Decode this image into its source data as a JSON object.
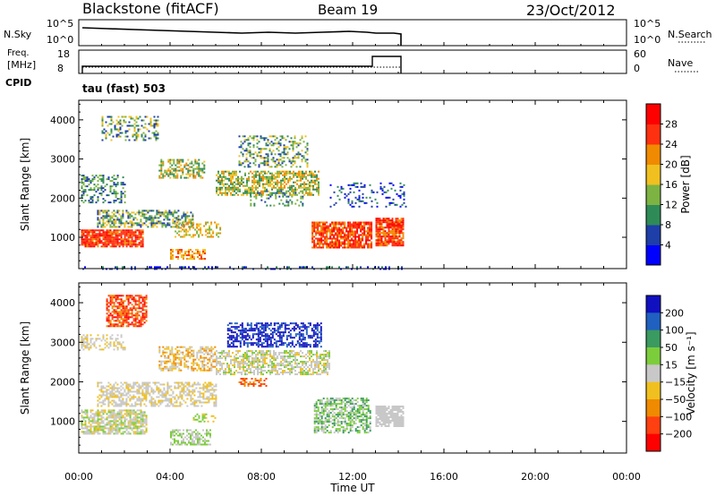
{
  "header": {
    "station": "Blackstone (fitACF)",
    "beam": "Beam 19",
    "date": "23/Oct/2012"
  },
  "top_panels": {
    "nsky_label": "N.Sky",
    "nsky_ticks": [
      "10^5",
      "10^0"
    ],
    "nsearch_label": "N.Search",
    "nsearch_ticks": [
      "10^5",
      "10^0"
    ],
    "freq_label_1": "Freq.",
    "freq_label_2": "[MHz]",
    "freq_ticks": [
      "18",
      "8"
    ],
    "nave_label": "Nave",
    "nave_ticks": [
      "60",
      "0"
    ],
    "cpid_label": "CPID",
    "cpid_value": "tau (fast) 503"
  },
  "chart_data": [
    {
      "type": "heatmap",
      "name": "power",
      "ylabel": "Slant Range [km]",
      "yticks": [
        "1000",
        "2000",
        "3000",
        "4000"
      ],
      "ylim": [
        200,
        4500
      ],
      "xlim": [
        0,
        24
      ],
      "colorbar_label": "Power [dB]",
      "colorbar_ticks": [
        "28",
        "24",
        "20",
        "16",
        "12",
        "8",
        "4"
      ],
      "colors": [
        "#0000ff",
        "#1e3ea8",
        "#2e8b57",
        "#7cb342",
        "#f0c020",
        "#f08a00",
        "#ff3010",
        "#ff0000"
      ],
      "colorbar_range": [
        0,
        32
      ]
    },
    {
      "type": "heatmap",
      "name": "velocity",
      "ylabel": "Slant Range [km]",
      "yticks": [
        "1000",
        "2000",
        "3000",
        "4000"
      ],
      "ylim": [
        200,
        4500
      ],
      "xlim": [
        0,
        24
      ],
      "xlabel": "Time UT",
      "xticks": [
        "00:00",
        "04:00",
        "08:00",
        "12:00",
        "16:00",
        "20:00",
        "00:00"
      ],
      "colorbar_label": "Velocity [m s⁻¹]",
      "colorbar_ticks": [
        "200",
        "100",
        "50",
        "15",
        "−15",
        "−50",
        "−100",
        "−200"
      ],
      "colors": [
        "#1010c0",
        "#2060c0",
        "#3a9a60",
        "#7ccd3c",
        "#c8c8c8",
        "#f0c020",
        "#f08a00",
        "#ff4010",
        "#ff0000"
      ]
    }
  ]
}
